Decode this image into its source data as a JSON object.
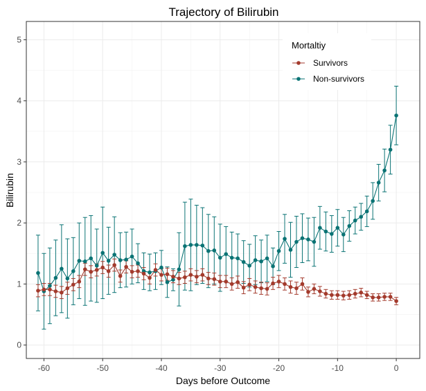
{
  "chart_data": {
    "type": "line",
    "title": "Trajectory of Bilirubin",
    "xlabel": "Days before Outcome",
    "ylabel": "Bilirubin",
    "xlim": [
      -63,
      4
    ],
    "ylim": [
      -0.22,
      5.3
    ],
    "xticks": [
      -60,
      -50,
      -40,
      -30,
      -20,
      -10,
      0
    ],
    "yticks": [
      0,
      1,
      2,
      3,
      4,
      5
    ],
    "grid": true,
    "legend": {
      "title": "Mortaltiy",
      "position": "top-right"
    },
    "x": [
      -61,
      -60,
      -59,
      -58,
      -57,
      -56,
      -55,
      -54,
      -53,
      -52,
      -51,
      -50,
      -49,
      -48,
      -47,
      -46,
      -45,
      -44,
      -43,
      -42,
      -41,
      -40,
      -39,
      -38,
      -37,
      -36,
      -35,
      -34,
      -33,
      -32,
      -31,
      -30,
      -29,
      -28,
      -27,
      -26,
      -25,
      -24,
      -23,
      -22,
      -21,
      -20,
      -19,
      -18,
      -17,
      -16,
      -15,
      -14,
      -13,
      -12,
      -11,
      -10,
      -9,
      -8,
      -7,
      -6,
      -5,
      -4,
      -3,
      -2,
      -1,
      0
    ],
    "series": [
      {
        "name": "Survivors",
        "color": "#a33a2c",
        "values": [
          0.89,
          0.91,
          0.91,
          0.88,
          0.86,
          0.93,
          0.99,
          1.04,
          1.24,
          1.2,
          1.23,
          1.27,
          1.21,
          1.31,
          1.13,
          1.28,
          1.2,
          1.21,
          1.17,
          1.1,
          1.23,
          1.15,
          1.16,
          1.12,
          1.09,
          1.11,
          1.15,
          1.12,
          1.15,
          1.09,
          1.08,
          1.04,
          1.04,
          1.0,
          1.03,
          0.94,
          0.99,
          0.95,
          0.93,
          0.92,
          1.01,
          1.04,
          1.0,
          0.95,
          0.93,
          1.0,
          0.87,
          0.92,
          0.88,
          0.84,
          0.82,
          0.82,
          0.81,
          0.82,
          0.84,
          0.86,
          0.82,
          0.78,
          0.78,
          0.79,
          0.79,
          0.72
        ],
        "errors": [
          0.1,
          0.1,
          0.1,
          0.1,
          0.1,
          0.1,
          0.1,
          0.1,
          0.1,
          0.1,
          0.1,
          0.1,
          0.1,
          0.1,
          0.1,
          0.1,
          0.1,
          0.1,
          0.1,
          0.1,
          0.1,
          0.1,
          0.1,
          0.1,
          0.1,
          0.1,
          0.1,
          0.1,
          0.1,
          0.1,
          0.1,
          0.1,
          0.1,
          0.1,
          0.1,
          0.1,
          0.1,
          0.1,
          0.1,
          0.1,
          0.1,
          0.1,
          0.1,
          0.1,
          0.1,
          0.1,
          0.08,
          0.08,
          0.08,
          0.07,
          0.07,
          0.07,
          0.07,
          0.07,
          0.07,
          0.07,
          0.06,
          0.06,
          0.06,
          0.06,
          0.06,
          0.06
        ]
      },
      {
        "name": "Non-survivors",
        "color": "#0a7374",
        "values": [
          1.18,
          0.88,
          0.97,
          1.1,
          1.25,
          1.09,
          1.21,
          1.38,
          1.37,
          1.42,
          1.3,
          1.51,
          1.38,
          1.48,
          1.39,
          1.4,
          1.45,
          1.34,
          1.21,
          1.19,
          1.21,
          1.27,
          1.03,
          1.07,
          1.24,
          1.62,
          1.64,
          1.64,
          1.63,
          1.54,
          1.55,
          1.43,
          1.49,
          1.43,
          1.42,
          1.36,
          1.3,
          1.39,
          1.37,
          1.42,
          1.29,
          1.54,
          1.74,
          1.56,
          1.69,
          1.75,
          1.73,
          1.69,
          1.92,
          1.86,
          1.82,
          1.92,
          1.81,
          1.95,
          2.04,
          2.1,
          2.19,
          2.36,
          2.66,
          2.86,
          3.2,
          3.76
        ],
        "errors": [
          0.62,
          0.62,
          0.62,
          0.62,
          0.72,
          0.65,
          0.55,
          0.62,
          0.72,
          0.7,
          0.6,
          0.75,
          0.55,
          0.62,
          0.45,
          0.45,
          0.45,
          0.32,
          0.3,
          0.3,
          0.3,
          0.28,
          0.25,
          0.18,
          0.6,
          0.72,
          0.75,
          0.65,
          0.62,
          0.6,
          0.55,
          0.55,
          0.45,
          0.42,
          0.4,
          0.35,
          0.35,
          0.4,
          0.35,
          0.38,
          0.3,
          0.32,
          0.4,
          0.45,
          0.42,
          0.4,
          0.35,
          0.4,
          0.35,
          0.32,
          0.3,
          0.3,
          0.28,
          0.25,
          0.22,
          0.22,
          0.25,
          0.3,
          0.3,
          0.35,
          0.4,
          0.48
        ]
      }
    ]
  }
}
